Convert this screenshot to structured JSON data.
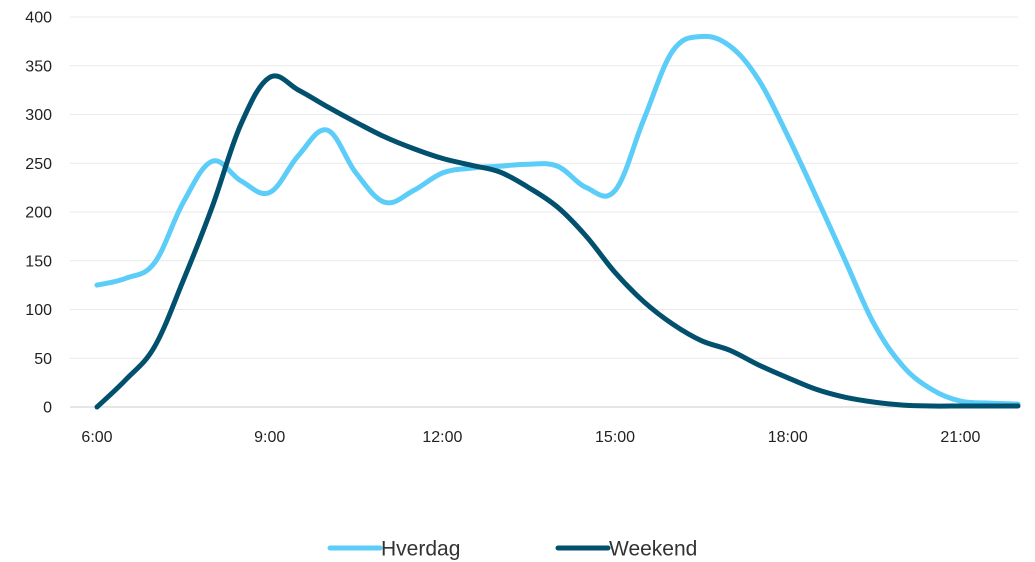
{
  "chart_data": {
    "type": "line",
    "title": "",
    "xlabel": "",
    "ylabel": "",
    "x_ticks": [
      "6:00",
      "9:00",
      "12:00",
      "15:00",
      "18:00",
      "21:00"
    ],
    "y_ticks": [
      0,
      50,
      100,
      150,
      200,
      250,
      300,
      350,
      400
    ],
    "ylim": [
      0,
      400
    ],
    "xlim_hours": [
      6,
      22
    ],
    "grid": true,
    "legend": "bottom",
    "series": [
      {
        "name": "Hverdag",
        "color": "#5bcdf8",
        "points": [
          [
            6.0,
            125
          ],
          [
            6.5,
            132
          ],
          [
            7.0,
            148
          ],
          [
            7.5,
            210
          ],
          [
            8.0,
            252
          ],
          [
            8.5,
            232
          ],
          [
            9.0,
            220
          ],
          [
            9.5,
            258
          ],
          [
            10.0,
            284
          ],
          [
            10.5,
            240
          ],
          [
            11.0,
            210
          ],
          [
            11.5,
            222
          ],
          [
            12.0,
            240
          ],
          [
            12.5,
            245
          ],
          [
            13.0,
            247
          ],
          [
            13.5,
            249
          ],
          [
            14.0,
            247
          ],
          [
            14.5,
            225
          ],
          [
            15.0,
            222
          ],
          [
            15.5,
            295
          ],
          [
            16.0,
            365
          ],
          [
            16.5,
            380
          ],
          [
            17.0,
            370
          ],
          [
            17.5,
            335
          ],
          [
            18.0,
            278
          ],
          [
            18.5,
            215
          ],
          [
            19.0,
            150
          ],
          [
            19.5,
            85
          ],
          [
            20.0,
            42
          ],
          [
            20.5,
            18
          ],
          [
            21.0,
            6
          ],
          [
            21.5,
            4
          ],
          [
            22.0,
            3
          ]
        ]
      },
      {
        "name": "Weekend",
        "color": "#00506e",
        "points": [
          [
            6.0,
            0
          ],
          [
            6.5,
            28
          ],
          [
            7.0,
            62
          ],
          [
            7.5,
            130
          ],
          [
            8.0,
            205
          ],
          [
            8.5,
            290
          ],
          [
            9.0,
            338
          ],
          [
            9.5,
            325
          ],
          [
            10.0,
            308
          ],
          [
            10.5,
            292
          ],
          [
            11.0,
            277
          ],
          [
            11.5,
            265
          ],
          [
            12.0,
            255
          ],
          [
            12.5,
            248
          ],
          [
            13.0,
            241
          ],
          [
            13.5,
            225
          ],
          [
            14.0,
            205
          ],
          [
            14.5,
            175
          ],
          [
            15.0,
            138
          ],
          [
            15.5,
            108
          ],
          [
            16.0,
            85
          ],
          [
            16.5,
            68
          ],
          [
            17.0,
            58
          ],
          [
            17.5,
            43
          ],
          [
            18.0,
            30
          ],
          [
            18.5,
            18
          ],
          [
            19.0,
            10
          ],
          [
            19.5,
            5
          ],
          [
            20.0,
            2
          ],
          [
            20.5,
            1
          ],
          [
            21.0,
            1
          ],
          [
            21.5,
            1
          ],
          [
            22.0,
            1
          ]
        ]
      }
    ]
  }
}
